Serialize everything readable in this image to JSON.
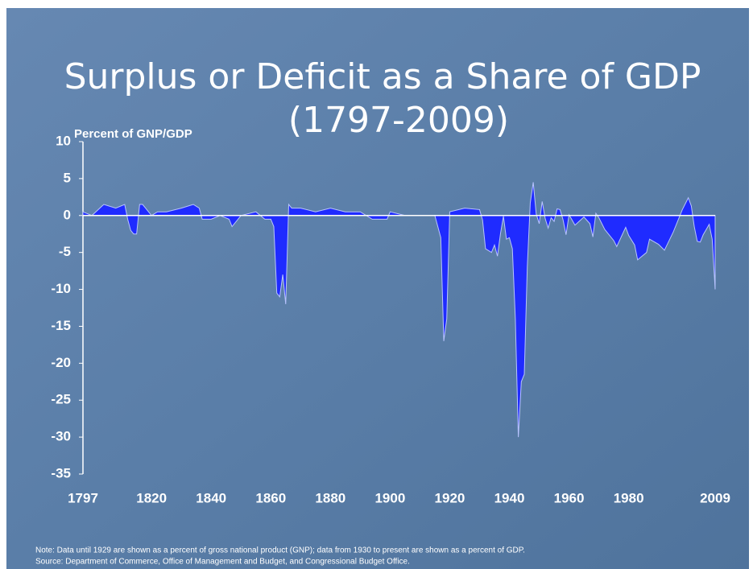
{
  "chart_data": {
    "type": "area",
    "title": "Surplus or Deficit as a Share of GDP",
    "subtitle": "(1797-2009)",
    "y_label": "Percent of GNP/GDP",
    "notes": [
      "Note: Data until 1929 are shown as a percent of gross national product (GNP); data from 1930 to present are shown as a percent of GDP.",
      "Source: Department of Commerce, Office of Management and Budget, and Congressional Budget Office."
    ],
    "color": "#1f2bff",
    "x": [
      1797,
      1800,
      1804,
      1808,
      1811,
      1812,
      1813,
      1814,
      1815,
      1816,
      1817,
      1820,
      1822,
      1825,
      1830,
      1834,
      1836,
      1837,
      1840,
      1843,
      1846,
      1847,
      1850,
      1855,
      1858,
      1860,
      1861,
      1862,
      1863,
      1864,
      1865,
      1866,
      1867,
      1870,
      1875,
      1880,
      1885,
      1890,
      1894,
      1899,
      1900,
      1905,
      1910,
      1915,
      1917,
      1918,
      1919,
      1920,
      1925,
      1930,
      1931,
      1932,
      1934,
      1935,
      1936,
      1937,
      1938,
      1939,
      1940,
      1941,
      1942,
      1943,
      1944,
      1945,
      1946,
      1947,
      1948,
      1949,
      1950,
      1951,
      1952,
      1953,
      1954,
      1955,
      1956,
      1957,
      1958,
      1959,
      1960,
      1961,
      1962,
      1965,
      1967,
      1968,
      1969,
      1970,
      1972,
      1975,
      1976,
      1979,
      1980,
      1982,
      1983,
      1986,
      1987,
      1990,
      1992,
      1995,
      1998,
      2000,
      2001,
      2002,
      2003,
      2004,
      2005,
      2006,
      2007,
      2008,
      2009
    ],
    "values": [
      0.5,
      0,
      1.5,
      1,
      1.5,
      -0.5,
      -2,
      -2.5,
      -2.5,
      1.5,
      1.5,
      0,
      0.5,
      0.5,
      1,
      1.5,
      1,
      -0.5,
      -0.5,
      0,
      -0.5,
      -1.5,
      0,
      0.5,
      -0.5,
      -0.5,
      -1.5,
      -10.5,
      -11,
      -8,
      -12,
      1.5,
      1,
      1,
      0.5,
      1,
      0.5,
      0.5,
      -0.5,
      -0.5,
      0.5,
      0,
      0,
      0,
      -3,
      -17,
      -14,
      0.5,
      1,
      0.8,
      -0.6,
      -4.5,
      -5,
      -4,
      -5.5,
      -2.5,
      -0.1,
      -3.2,
      -3,
      -4.5,
      -14,
      -30,
      -22.5,
      -21.5,
      -7,
      1.7,
      4.5,
      0.2,
      -1.1,
      1.9,
      -0.4,
      -1.7,
      -0.3,
      -0.8,
      0.9,
      0.8,
      -0.6,
      -2.6,
      0.1,
      -0.6,
      -1.3,
      -0.2,
      -1.1,
      -2.9,
      0.3,
      -0.3,
      -1.9,
      -3.4,
      -4.2,
      -1.6,
      -2.7,
      -4,
      -6,
      -5,
      -3.2,
      -3.9,
      -4.7,
      -2.2,
      0.8,
      2.4,
      1.3,
      -1.5,
      -3.5,
      -3.6,
      -2.6,
      -1.9,
      -1.2,
      -3.2,
      -10
    ],
    "xlim": [
      1797,
      2009
    ],
    "xticks": [
      1797,
      1820,
      1840,
      1860,
      1880,
      1900,
      1920,
      1940,
      1960,
      1980,
      2009
    ],
    "ylim": [
      -35,
      10
    ],
    "yticks": [
      10,
      5,
      0,
      -5,
      -10,
      -15,
      -20,
      -25,
      -30,
      -35
    ]
  }
}
